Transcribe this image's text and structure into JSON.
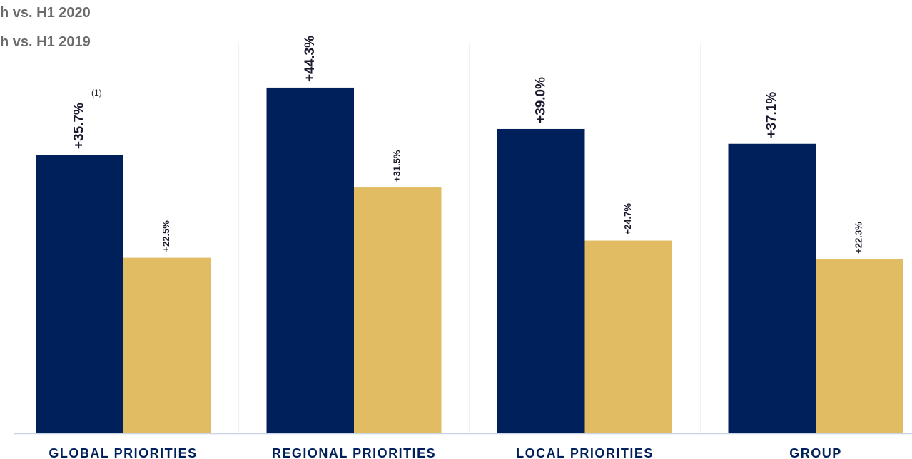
{
  "chart_data": {
    "type": "bar",
    "categories": [
      "GLOBAL PRIORITIES",
      "REGIONAL PRIORITIES",
      "LOCAL PRIORITIES",
      "GROUP"
    ],
    "series": [
      {
        "name": "h vs. H1 2020",
        "color": "#00205b",
        "values": [
          35.7,
          44.3,
          39.0,
          37.1
        ],
        "value_labels": [
          "+35.7%",
          "+44.3%",
          "+39.0%",
          "+37.1%"
        ]
      },
      {
        "name": "h vs. H1 2019",
        "color": "#e2bc63",
        "values": [
          22.5,
          31.5,
          24.7,
          22.3
        ],
        "value_labels": [
          "+22.5%",
          "+31.5%",
          "+24.7%",
          "+22.3%"
        ]
      }
    ],
    "annotation": "(1)"
  }
}
